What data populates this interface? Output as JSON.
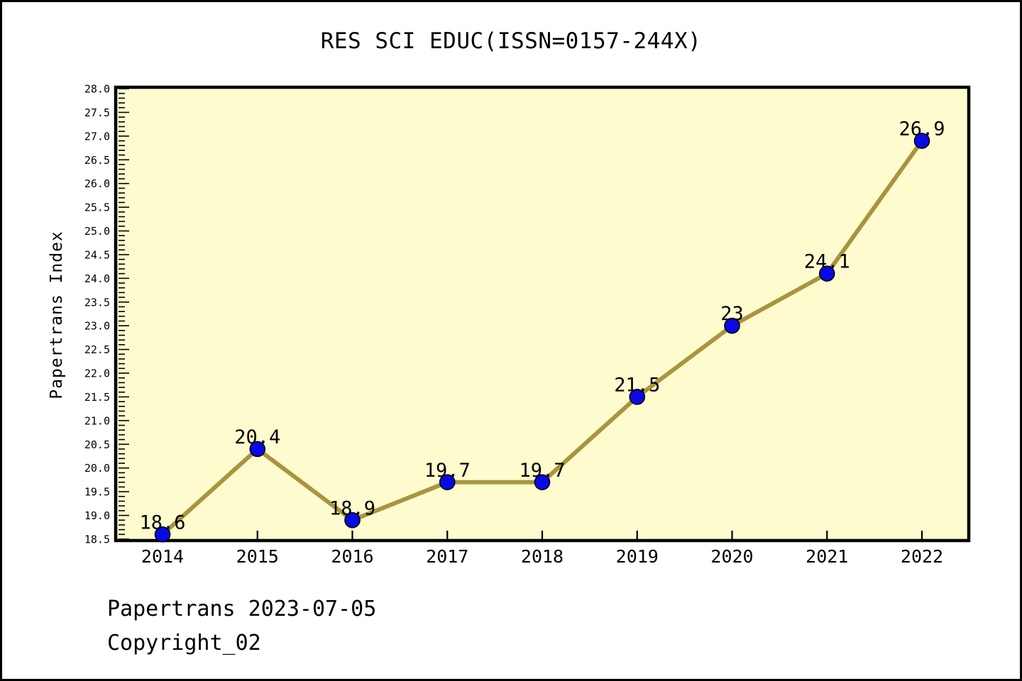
{
  "footer": {
    "line1": "Papertrans 2023-07-05",
    "line2": "Copyright_02"
  },
  "chart_data": {
    "type": "line",
    "title": "RES SCI EDUC(ISSN=0157-244X)",
    "ylabel": "Papertrans Index",
    "xlabel": "",
    "x": [
      "2014",
      "2015",
      "2016",
      "2017",
      "2018",
      "2019",
      "2020",
      "2021",
      "2022"
    ],
    "values": [
      18.6,
      20.4,
      18.9,
      19.7,
      19.7,
      21.5,
      23,
      24.1,
      26.9
    ],
    "point_labels": [
      "18.6",
      "20.4",
      "18.9",
      "19.7",
      "19.7",
      "21.5",
      "23",
      "24.1",
      "26.9"
    ],
    "ylim": [
      18.5,
      28.0
    ],
    "ytick_major": 0.5,
    "ytick_minor": 0.1,
    "grid": false,
    "legend": false,
    "colors": {
      "page_background": "#FFFFFF",
      "plot_background": "#FEFCCE",
      "line": "#A8953E",
      "marker_fill": "#0909E6",
      "marker_edge": "#000000",
      "axis": "#000000",
      "text": "#000000"
    }
  }
}
